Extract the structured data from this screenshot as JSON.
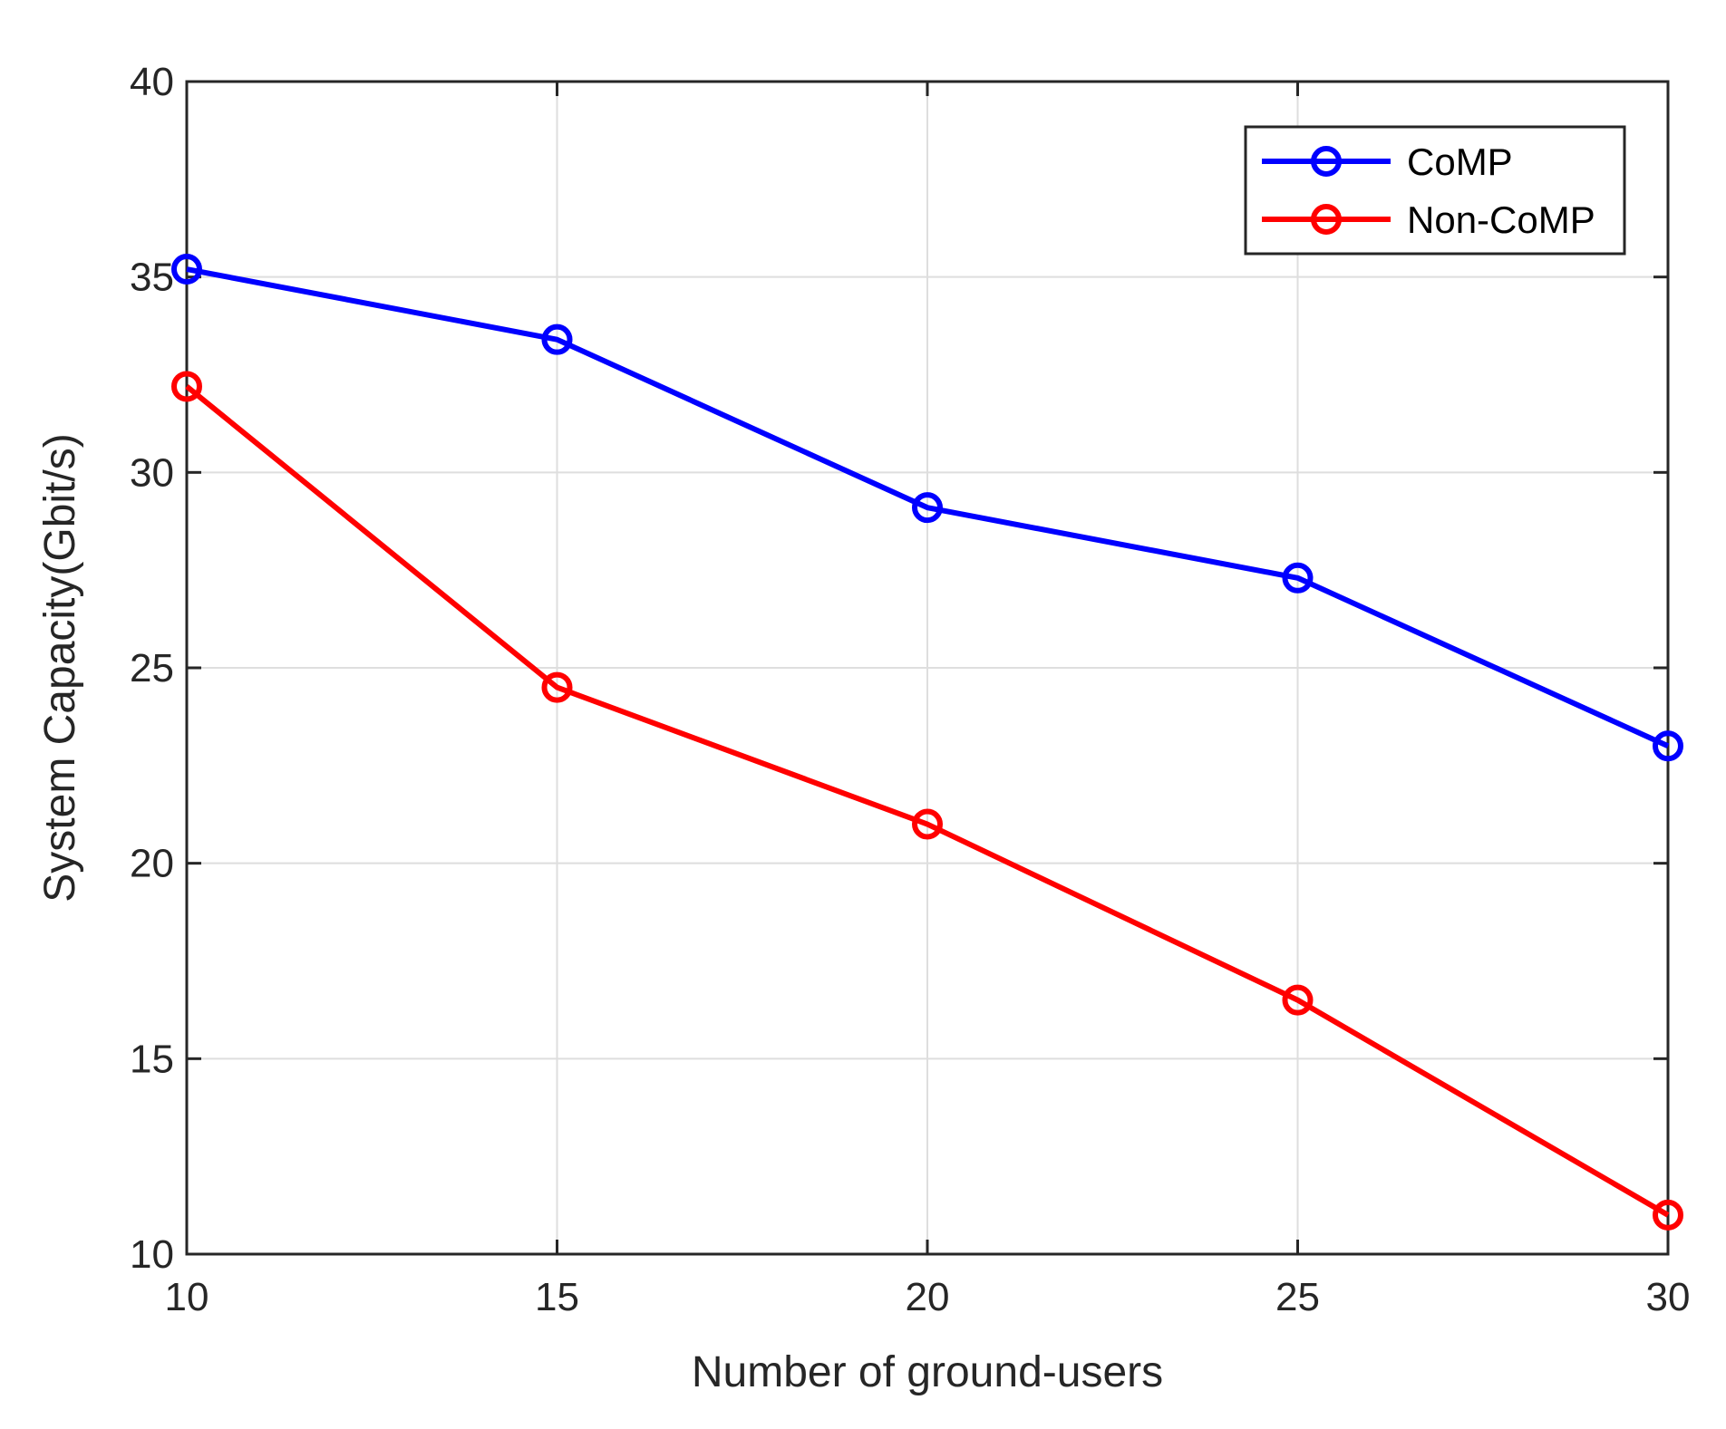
{
  "chart_data": {
    "type": "line",
    "title": "",
    "xlabel": "Number of ground-users",
    "ylabel": "System Capacity(Gbit/s)",
    "x": [
      10,
      15,
      20,
      25,
      30
    ],
    "xlim": [
      10,
      30
    ],
    "ylim": [
      10,
      40
    ],
    "xticks": [
      10,
      15,
      20,
      25,
      30
    ],
    "yticks": [
      10,
      15,
      20,
      25,
      30,
      35,
      40
    ],
    "xtick_labels": [
      "10",
      "15",
      "20",
      "25",
      "30"
    ],
    "ytick_labels": [
      "10",
      "15",
      "20",
      "25",
      "30",
      "35",
      "40"
    ],
    "grid": true,
    "legend_position": "top-right",
    "series": [
      {
        "name": "CoMP",
        "color": "#0000ff",
        "marker": "circle",
        "values": [
          35.2,
          33.4,
          29.1,
          27.3,
          23.0
        ]
      },
      {
        "name": "Non-CoMP",
        "color": "#ff0000",
        "marker": "circle",
        "values": [
          32.2,
          24.5,
          21.0,
          16.5,
          11.0
        ]
      }
    ]
  }
}
